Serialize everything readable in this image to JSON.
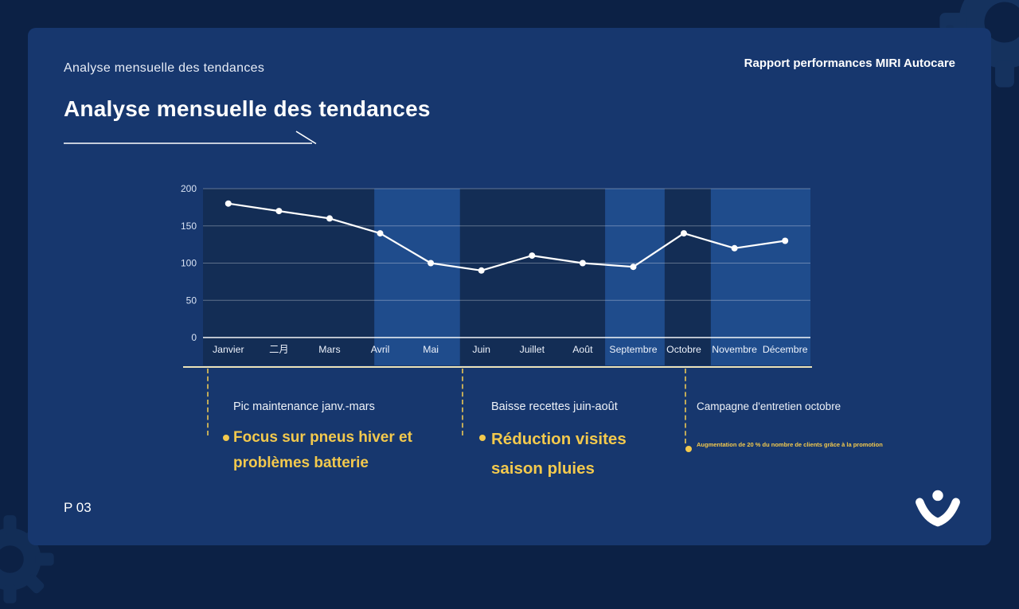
{
  "header": {
    "eyebrow": "Analyse mensuelle des tendances",
    "report_title": "Rapport performances MIRI Autocare",
    "title": "Analyse mensuelle des tendances"
  },
  "chart_data": {
    "type": "line",
    "title": "Analyse mensuelle des tendances",
    "categories": [
      "Janvier",
      "二月",
      "Mars",
      "Avril",
      "Mai",
      "Juin",
      "Juillet",
      "Août",
      "Septembre",
      "Octobre",
      "Novembre",
      "Décembre"
    ],
    "values": [
      180,
      170,
      160,
      140,
      100,
      90,
      110,
      100,
      95,
      140,
      120,
      130
    ],
    "ylim": [
      0,
      200
    ],
    "yticks": [
      0,
      50,
      100,
      150,
      200
    ],
    "grid": true,
    "legend": "none",
    "line_color": "#ffffff",
    "highlight_bands": [
      {
        "from": 0.0,
        "to": 0.282
      },
      {
        "from": 0.423,
        "to": 0.662
      },
      {
        "from": 0.76,
        "to": 0.836
      }
    ],
    "colors": {
      "plot_bg": "#1f4c8c",
      "band": "#132d55"
    }
  },
  "callouts": [
    {
      "label": "Pic maintenance janv.-mars",
      "highlight": "Focus sur pneus hiver et problèmes batterie"
    },
    {
      "label": "Baisse recettes juin-août",
      "highlight": "Réduction visites saison pluies"
    },
    {
      "label": "Campagne d'entretien octobre",
      "note": "Augmentation de 20 % du nombre de clients grâce à la promotion"
    }
  ],
  "footer": {
    "page_number": "P 03"
  },
  "icons": {
    "decoration": "gear-icon",
    "logo": "miri-person-logo"
  },
  "colors": {
    "background": "#0c2145",
    "panel": "#17376e",
    "accent_yellow": "#f3c94d",
    "divider": "#ece3b8"
  }
}
